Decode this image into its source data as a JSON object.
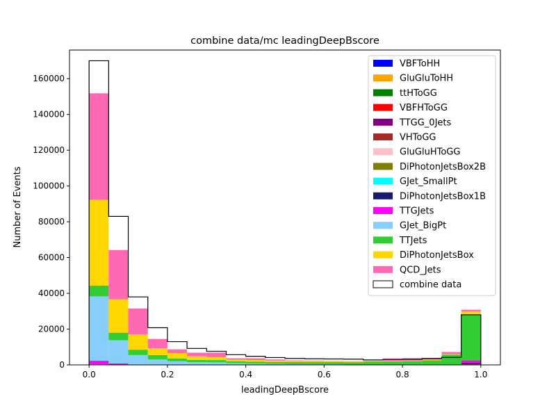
{
  "chart_data": {
    "type": "bar",
    "stacked": true,
    "title": "combine data/mc leadingDeepBscore",
    "xlabel": "leadingDeepBscore",
    "ylabel": "Number of Events",
    "xlim": [
      -0.05,
      1.05
    ],
    "ylim": [
      0,
      176000
    ],
    "xticks": [
      0.0,
      0.2,
      0.4,
      0.6,
      0.8,
      1.0
    ],
    "xtick_labels": [
      "0.0",
      "0.2",
      "0.4",
      "0.6",
      "0.8",
      "1.0"
    ],
    "yticks": [
      0,
      20000,
      40000,
      60000,
      80000,
      100000,
      120000,
      140000,
      160000
    ],
    "ytick_labels": [
      "0",
      "20000",
      "40000",
      "60000",
      "80000",
      "100000",
      "120000",
      "140000",
      "160000"
    ],
    "legend_position": "top-right",
    "bin_edges": [
      0.0,
      0.05,
      0.1,
      0.15,
      0.2,
      0.25,
      0.3,
      0.35,
      0.4,
      0.45,
      0.5,
      0.55,
      0.6,
      0.65,
      0.7,
      0.75,
      0.8,
      0.85,
      0.9,
      0.95,
      1.0
    ],
    "series": [
      {
        "name": "VBFToHH",
        "color": "#0000ff",
        "values": [
          0,
          0,
          0,
          0,
          0,
          0,
          0,
          0,
          0,
          0,
          0,
          0,
          0,
          0,
          0,
          0,
          0,
          0,
          0,
          0
        ]
      },
      {
        "name": "GluGluToHH",
        "color": "#ffa500",
        "values": [
          0,
          0,
          0,
          0,
          0,
          0,
          0,
          0,
          0,
          0,
          0,
          0,
          0,
          0,
          0,
          0,
          0,
          0,
          0,
          0
        ]
      },
      {
        "name": "ttHToGG",
        "color": "#008000",
        "values": [
          0,
          0,
          0,
          0,
          0,
          0,
          0,
          0,
          0,
          0,
          0,
          0,
          0,
          0,
          0,
          0,
          0,
          0,
          0,
          300
        ]
      },
      {
        "name": "VBFHToGG",
        "color": "#ff0000",
        "values": [
          0,
          0,
          0,
          0,
          0,
          0,
          0,
          0,
          0,
          0,
          0,
          0,
          0,
          0,
          0,
          0,
          0,
          0,
          0,
          0
        ]
      },
      {
        "name": "TTGG_0Jets",
        "color": "#800080",
        "values": [
          200,
          100,
          0,
          0,
          0,
          0,
          0,
          0,
          0,
          0,
          0,
          0,
          0,
          0,
          0,
          0,
          0,
          0,
          0,
          1000
        ]
      },
      {
        "name": "VHToGG",
        "color": "#a52a2a",
        "values": [
          0,
          0,
          0,
          0,
          0,
          0,
          0,
          0,
          0,
          0,
          0,
          0,
          0,
          0,
          0,
          0,
          0,
          0,
          0,
          0
        ]
      },
      {
        "name": "GluGluHToGG",
        "color": "#ffc0cb",
        "values": [
          100,
          0,
          0,
          0,
          0,
          0,
          0,
          0,
          0,
          0,
          0,
          0,
          0,
          0,
          0,
          0,
          0,
          0,
          0,
          0
        ]
      },
      {
        "name": "DiPhotonJetsBox2B",
        "color": "#808000",
        "values": [
          0,
          0,
          0,
          0,
          0,
          0,
          0,
          0,
          0,
          0,
          0,
          0,
          0,
          0,
          0,
          0,
          0,
          0,
          0,
          0
        ]
      },
      {
        "name": "GJet_SmallPt",
        "color": "#00ffff",
        "values": [
          0,
          0,
          0,
          0,
          0,
          0,
          0,
          0,
          0,
          0,
          0,
          0,
          0,
          0,
          0,
          0,
          0,
          0,
          0,
          0
        ]
      },
      {
        "name": "DiPhotonJetsBox1B",
        "color": "#191970",
        "values": [
          0,
          0,
          0,
          0,
          0,
          0,
          0,
          0,
          0,
          0,
          0,
          0,
          0,
          0,
          0,
          0,
          0,
          0,
          0,
          0
        ]
      },
      {
        "name": "TTGJets",
        "color": "#ff00ff",
        "values": [
          2000,
          700,
          200,
          100,
          0,
          0,
          0,
          0,
          0,
          0,
          0,
          0,
          0,
          0,
          0,
          0,
          0,
          0,
          0,
          1200
        ]
      },
      {
        "name": "GJet_BigPt",
        "color": "#87cefa",
        "values": [
          36000,
          13000,
          5300,
          2900,
          2000,
          1500,
          1400,
          900,
          700,
          500,
          400,
          300,
          300,
          200,
          100,
          100,
          100,
          100,
          100,
          0
        ]
      },
      {
        "name": "TTJets",
        "color": "#32cd32",
        "values": [
          6000,
          4200,
          3000,
          2500,
          1600,
          1300,
          1300,
          1100,
          1100,
          1100,
          1200,
          1300,
          1300,
          1300,
          1700,
          1800,
          2000,
          2400,
          5600,
          25500
        ]
      },
      {
        "name": "DiPhotonJetsBox",
        "color": "#ffd700",
        "values": [
          48000,
          18700,
          8500,
          3800,
          3000,
          2000,
          1600,
          1000,
          900,
          800,
          500,
          500,
          400,
          300,
          300,
          300,
          300,
          300,
          300,
          1800
        ]
      },
      {
        "name": "QCD_Jets",
        "color": "#ff69b4",
        "values": [
          59500,
          27500,
          14500,
          5200,
          2100,
          2000,
          2600,
          700,
          1000,
          600,
          400,
          300,
          200,
          200,
          300,
          1400,
          1400,
          1100,
          1200,
          1000
        ]
      }
    ],
    "data_series": {
      "name": "combine data",
      "edgecolor": "#000000",
      "values": [
        170000,
        83000,
        38000,
        20800,
        13000,
        9200,
        7600,
        5700,
        4800,
        4100,
        3600,
        3400,
        3300,
        3200,
        2800,
        3000,
        3100,
        3600,
        4200,
        28000
      ]
    }
  }
}
